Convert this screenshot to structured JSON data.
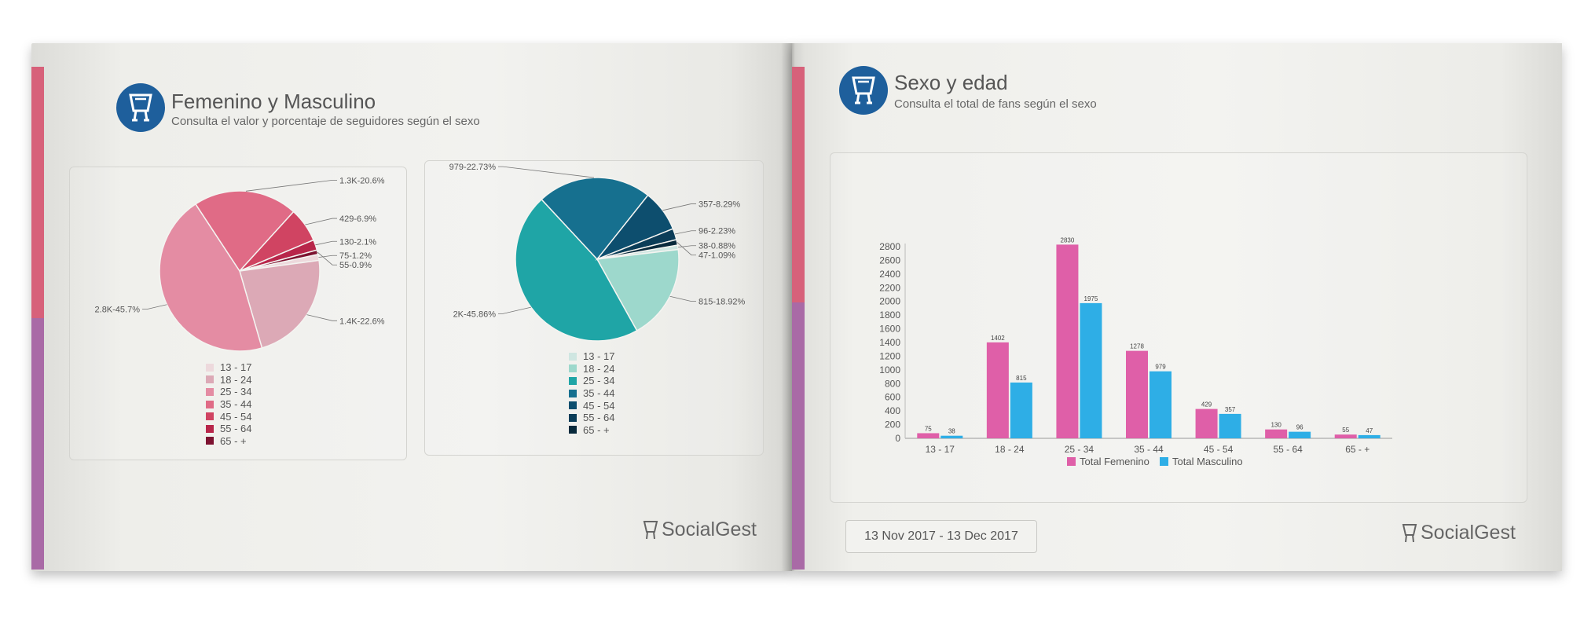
{
  "left_page": {
    "title": "Femenino y Masculino",
    "subtitle": "Consulta el valor y porcentaje de seguidores según el sexo",
    "brand": "SocialGest"
  },
  "right_page": {
    "title": "Sexo y edad",
    "subtitle": "Consulta el total de fans según el sexo",
    "date_range": "13 Nov 2017 - 13 Dec 2017",
    "brand": "SocialGest"
  },
  "colors": {
    "femenino": "#df5fa8",
    "masculino": "#2eaee6",
    "spine_pink": "#d7617a",
    "spine_purple": "#a96aa6",
    "logo_blue": "#1e5f9c"
  },
  "chart_data": [
    {
      "type": "pie",
      "labels": [
        "13 - 17",
        "18 - 24",
        "25 - 34",
        "35 - 44",
        "45 - 54",
        "55 - 64",
        "65 - +"
      ],
      "values": [
        75,
        1400,
        2800,
        1300,
        429,
        130,
        55
      ],
      "data_labels": [
        "75-1.2%",
        "1.4K-22.6%",
        "2.8K-45.7%",
        "1.3K-20.6%",
        "429-6.9%",
        "130-2.1%",
        "55-0.9%"
      ],
      "colors": [
        "#edd9dc",
        "#dca9b6",
        "#e48ca3",
        "#e06b86",
        "#d04462",
        "#b8264a",
        "#7d1230"
      ],
      "legend": "bottom"
    },
    {
      "type": "pie",
      "labels": [
        "13 - 17",
        "18 - 24",
        "25 - 34",
        "35 - 44",
        "45 - 54",
        "55 - 64",
        "65 - +"
      ],
      "values": [
        38,
        815,
        2000,
        979,
        357,
        96,
        47
      ],
      "data_labels": [
        "38-0.88%",
        "815-18.92%",
        "2K-45.86%",
        "979-22.73%",
        "357-8.29%",
        "96-2.23%",
        "47-1.09%"
      ],
      "colors": [
        "#cfe6e1",
        "#9dd8cc",
        "#1fa5a6",
        "#16708f",
        "#0d4e6e",
        "#0b3d58",
        "#082a3c"
      ],
      "legend": "bottom"
    },
    {
      "type": "bar",
      "categories": [
        "13 - 17",
        "18 - 24",
        "25 - 34",
        "35 - 44",
        "45 - 54",
        "55 - 64",
        "65 - +"
      ],
      "series": [
        {
          "name": "Total Femenino",
          "values": [
            75,
            1402,
            2830,
            1278,
            429,
            130,
            55
          ]
        },
        {
          "name": "Total Masculino",
          "values": [
            38,
            815,
            1975,
            979,
            357,
            96,
            47
          ]
        }
      ],
      "ylim": [
        0,
        2800
      ],
      "yticks": [
        0,
        200,
        400,
        600,
        800,
        1000,
        1200,
        1400,
        1600,
        1800,
        2000,
        2200,
        2400,
        2600,
        2800
      ],
      "legend": "bottom"
    }
  ]
}
